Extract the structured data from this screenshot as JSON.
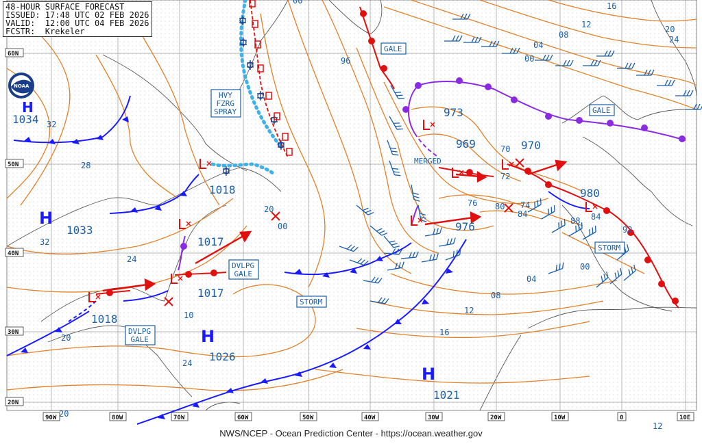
{
  "header": {
    "title": "48-HOUR SURFACE FORECAST",
    "issued": "ISSUED: 17:48 UTC 02 FEB 2026",
    "valid": "VALID:  12:00 UTC 04 FEB 2026",
    "forecaster": "FCSTR:  Krekeler"
  },
  "footer": "NWS/NCEP - Ocean Prediction Center - https://ocean.weather.gov",
  "logo_icon": "noaa-logo",
  "lat_labels": [
    "60N",
    "50N",
    "40N",
    "30N",
    "20N"
  ],
  "lon_labels": [
    "90W",
    "80W",
    "70W",
    "60W",
    "50W",
    "40W",
    "30W",
    "20W",
    "10W",
    "0",
    "10E"
  ],
  "pressure_centers": [
    {
      "type": "H",
      "value": "1034"
    },
    {
      "type": "H",
      "value": "1033"
    },
    {
      "type": "H",
      "value": "1026"
    },
    {
      "type": "H",
      "value": "1021"
    },
    {
      "type": "L",
      "value": "1018"
    },
    {
      "type": "L",
      "value": "1017"
    },
    {
      "type": "L",
      "value": "1017"
    },
    {
      "type": "L",
      "value": "1018"
    },
    {
      "type": "L",
      "value": "973"
    },
    {
      "type": "L",
      "value": "969"
    },
    {
      "type": "L",
      "value": "970"
    },
    {
      "type": "L",
      "value": "976"
    },
    {
      "type": "L",
      "value": "980"
    }
  ],
  "isobar_labels": [
    "32",
    "28",
    "32",
    "24",
    "20",
    "20",
    "24",
    "10",
    "20",
    "00",
    "96",
    "00",
    "16",
    "12",
    "08",
    "04",
    "00",
    "20",
    "24",
    "72",
    "76",
    "80",
    "84",
    "88",
    "84",
    "92",
    "74",
    "70",
    "00",
    "04",
    "08",
    "12",
    "16",
    "12"
  ],
  "warning_labels": [
    {
      "text": "HVY"
    },
    {
      "text": "FZRG"
    },
    {
      "text": "SPRAY"
    },
    {
      "text": "GALE"
    },
    {
      "text": "GALE"
    },
    {
      "text": "DVLPG"
    },
    {
      "text": "GALE"
    },
    {
      "text": "DVLPG"
    },
    {
      "text": "GALE"
    },
    {
      "text": "STORM"
    },
    {
      "text": "STORM"
    },
    {
      "text": "MERGED"
    }
  ],
  "colors": {
    "isobar": "#e0812a",
    "cold_front": "#1a1aff",
    "warm_front": "#e01010",
    "occluded": "#8a2be2",
    "text_blue": "#1a5ea8",
    "ice": "#3fb0e8",
    "grid": "#9a9a9a"
  }
}
